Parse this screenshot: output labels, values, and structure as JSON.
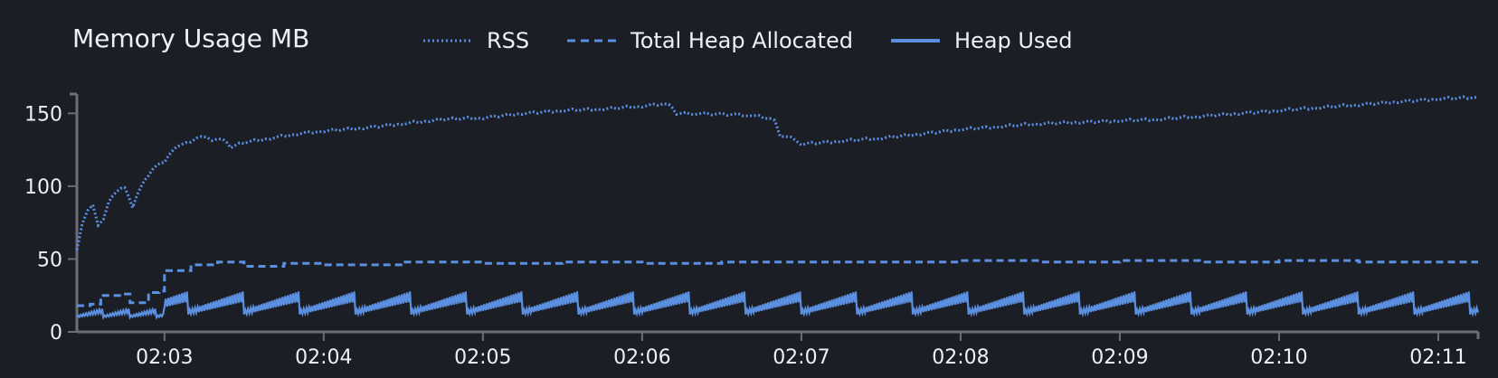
{
  "chart_data": {
    "type": "line",
    "title": "Memory Usage MB",
    "xlabel": "",
    "ylabel": "",
    "x_unit": "time (HH:MM)",
    "xlim": [
      "02:02:27",
      "02:11:15"
    ],
    "ylim": [
      0,
      162
    ],
    "y_ticks": [
      0,
      50,
      100,
      150
    ],
    "x_ticks": [
      "02:03",
      "02:04",
      "02:05",
      "02:06",
      "02:07",
      "02:08",
      "02:09",
      "02:10",
      "02:11"
    ],
    "grid": false,
    "legend_position": "top",
    "colors": {
      "background": "#1c1e26",
      "axis": "#6b6e78",
      "series": "#5b8fe0"
    },
    "series": [
      {
        "name": "RSS",
        "style": "dotted",
        "points": [
          [
            "02:02:27",
            57
          ],
          [
            "02:02:29",
            75
          ],
          [
            "02:02:31",
            84
          ],
          [
            "02:02:33",
            88
          ],
          [
            "02:02:35",
            74
          ],
          [
            "02:02:37",
            78
          ],
          [
            "02:02:39",
            90
          ],
          [
            "02:02:42",
            97
          ],
          [
            "02:02:45",
            100
          ],
          [
            "02:02:48",
            86
          ],
          [
            "02:02:51",
            100
          ],
          [
            "02:02:54",
            108
          ],
          [
            "02:02:57",
            115
          ],
          [
            "02:03:00",
            117
          ],
          [
            "02:03:03",
            125
          ],
          [
            "02:03:06",
            129
          ],
          [
            "02:03:10",
            131
          ],
          [
            "02:03:14",
            135
          ],
          [
            "02:03:18",
            132
          ],
          [
            "02:03:22",
            133
          ],
          [
            "02:03:25",
            127
          ],
          [
            "02:03:30",
            130
          ],
          [
            "02:03:40",
            133
          ],
          [
            "02:03:50",
            136
          ],
          [
            "02:04:00",
            138
          ],
          [
            "02:04:15",
            140
          ],
          [
            "02:04:30",
            143
          ],
          [
            "02:04:40",
            145
          ],
          [
            "02:04:45",
            146
          ],
          [
            "02:05:00",
            147
          ],
          [
            "02:05:15",
            150
          ],
          [
            "02:05:30",
            152
          ],
          [
            "02:05:45",
            153
          ],
          [
            "02:06:00",
            155
          ],
          [
            "02:06:10",
            157
          ],
          [
            "02:06:13",
            150
          ],
          [
            "02:06:20",
            150
          ],
          [
            "02:06:40",
            149
          ],
          [
            "02:06:50",
            146
          ],
          [
            "02:06:52",
            135
          ],
          [
            "02:06:58",
            132
          ],
          [
            "02:07:00",
            129
          ],
          [
            "02:07:15",
            131
          ],
          [
            "02:07:30",
            133
          ],
          [
            "02:07:45",
            136
          ],
          [
            "02:08:00",
            139
          ],
          [
            "02:08:15",
            141
          ],
          [
            "02:08:30",
            143
          ],
          [
            "02:08:45",
            144
          ],
          [
            "02:09:00",
            145
          ],
          [
            "02:09:15",
            146
          ],
          [
            "02:09:30",
            148
          ],
          [
            "02:09:45",
            150
          ],
          [
            "02:10:00",
            152
          ],
          [
            "02:10:15",
            154
          ],
          [
            "02:10:30",
            156
          ],
          [
            "02:10:45",
            158
          ],
          [
            "02:11:00",
            160
          ],
          [
            "02:11:15",
            161
          ]
        ]
      },
      {
        "name": "Total Heap Allocated",
        "style": "dashed",
        "points": [
          [
            "02:02:27",
            18
          ],
          [
            "02:02:32",
            19
          ],
          [
            "02:02:36",
            25
          ],
          [
            "02:02:44",
            26
          ],
          [
            "02:02:47",
            20
          ],
          [
            "02:02:54",
            27
          ],
          [
            "02:02:58",
            28
          ],
          [
            "02:03:00",
            42
          ],
          [
            "02:03:10",
            46
          ],
          [
            "02:03:20",
            48
          ],
          [
            "02:03:30",
            45
          ],
          [
            "02:03:45",
            47
          ],
          [
            "02:04:00",
            46
          ],
          [
            "02:04:30",
            48
          ],
          [
            "02:05:00",
            47
          ],
          [
            "02:05:30",
            48
          ],
          [
            "02:06:00",
            47
          ],
          [
            "02:06:30",
            48
          ],
          [
            "02:07:00",
            48
          ],
          [
            "02:07:30",
            48
          ],
          [
            "02:08:00",
            49
          ],
          [
            "02:08:30",
            48
          ],
          [
            "02:09:00",
            49
          ],
          [
            "02:09:30",
            48
          ],
          [
            "02:10:00",
            49
          ],
          [
            "02:10:30",
            48
          ],
          [
            "02:11:15",
            48
          ]
        ]
      },
      {
        "name": "Heap Used",
        "style": "solid",
        "pattern": "sawtooth",
        "range_start": [
          10,
          16
        ],
        "range_steady": [
          12,
          28
        ],
        "points": [
          [
            "02:02:27",
            10
          ],
          [
            "02:02:50",
            12
          ],
          [
            "02:03:00",
            14
          ],
          [
            "02:03:10",
            20
          ],
          [
            "02:03:20",
            22
          ],
          [
            "02:04:00",
            22
          ],
          [
            "02:06:00",
            22
          ],
          [
            "02:08:00",
            22
          ],
          [
            "02:10:00",
            22
          ],
          [
            "02:11:15",
            22
          ]
        ]
      }
    ]
  }
}
